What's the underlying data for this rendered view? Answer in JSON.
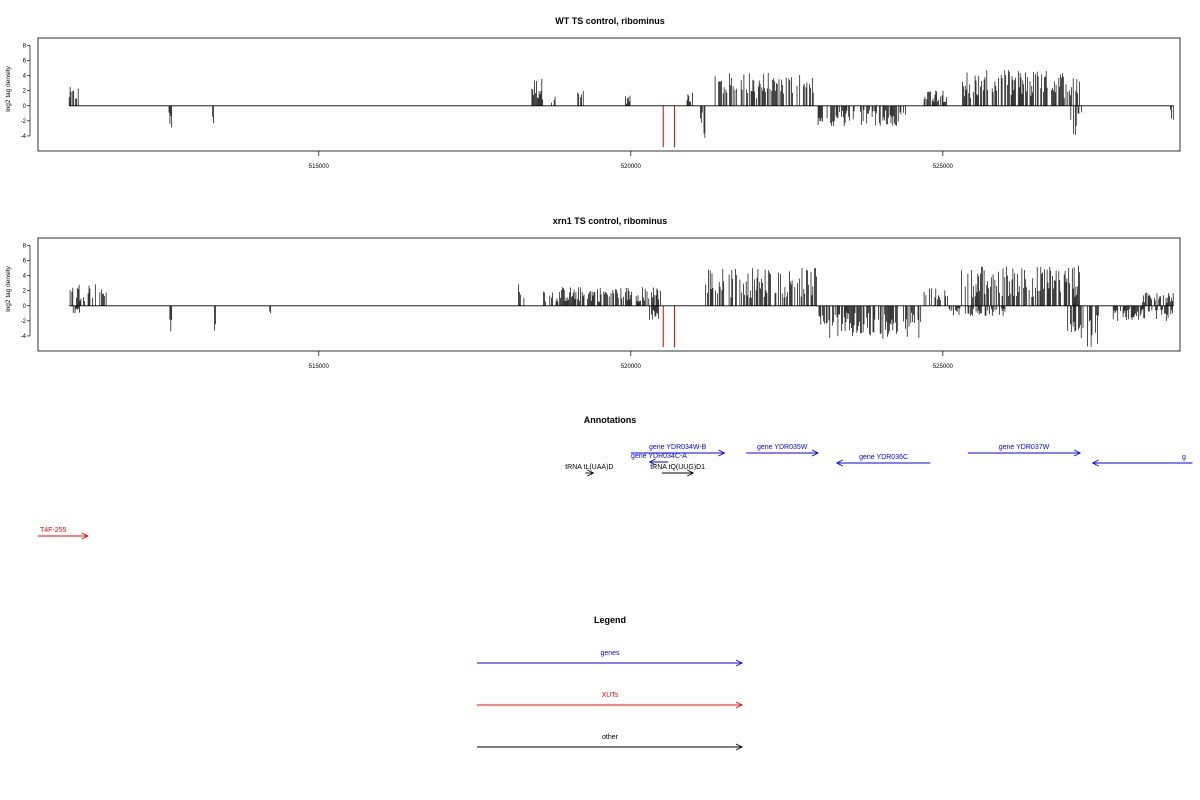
{
  "chart_data": [
    {
      "type": "bar",
      "title": "WT TS control, ribominus",
      "ylabel": "log2 tag density",
      "xlim": [
        510500,
        528800
      ],
      "ylim": [
        -6,
        9
      ],
      "yticks": [
        8,
        6,
        4,
        2,
        0,
        -2,
        -4
      ],
      "xticks": [
        515000,
        520000,
        525000
      ],
      "xtick_labels": [
        "515000",
        "520000",
        "525000"
      ],
      "red_markers_x": [
        520520,
        520700
      ],
      "red_marker_depth": -5.5,
      "segments": [
        {
          "x0": 511000,
          "x1": 511150,
          "mean": 1.5,
          "dir": 1
        },
        {
          "x0": 512600,
          "x1": 512650,
          "mean": 1.8,
          "dir": -1
        },
        {
          "x0": 513300,
          "x1": 513350,
          "mean": 1.6,
          "dir": -1
        },
        {
          "x0": 518400,
          "x1": 518600,
          "mean": 2.2,
          "dir": 1
        },
        {
          "x0": 518700,
          "x1": 518800,
          "mean": 1.2,
          "dir": 1
        },
        {
          "x0": 519150,
          "x1": 519250,
          "mean": 1.2,
          "dir": 1
        },
        {
          "x0": 519900,
          "x1": 520000,
          "mean": 0.8,
          "dir": 1
        },
        {
          "x0": 520900,
          "x1": 521000,
          "mean": 1.2,
          "dir": 1
        },
        {
          "x0": 521100,
          "x1": 521200,
          "mean": 2.5,
          "dir": -1
        },
        {
          "x0": 521350,
          "x1": 522950,
          "mean": 2.6,
          "dir": 1
        },
        {
          "x0": 523000,
          "x1": 524400,
          "mean": 1.6,
          "dir": -1
        },
        {
          "x0": 524700,
          "x1": 525100,
          "mean": 1.4,
          "dir": 1
        },
        {
          "x0": 525300,
          "x1": 527200,
          "mean": 2.8,
          "dir": 1
        },
        {
          "x0": 527050,
          "x1": 527250,
          "mean": 2.4,
          "dir": -1
        },
        {
          "x0": 528650,
          "x1": 528700,
          "mean": 1.2,
          "dir": -1
        }
      ]
    },
    {
      "type": "bar",
      "title": "xrn1 TS control, ribominus",
      "ylabel": "log2 tag density",
      "xlim": [
        510500,
        528800
      ],
      "ylim": [
        -6,
        9
      ],
      "yticks": [
        8,
        6,
        4,
        2,
        0,
        -2,
        -4
      ],
      "xticks": [
        515000,
        520000,
        525000
      ],
      "xtick_labels": [
        "515000",
        "520000",
        "525000"
      ],
      "red_markers_x": [
        520520,
        520700
      ],
      "red_marker_depth": -5.5,
      "segments": [
        {
          "x0": 511000,
          "x1": 511600,
          "mean": 1.8,
          "dir": 1
        },
        {
          "x0": 511050,
          "x1": 511200,
          "mean": 0.6,
          "dir": -1
        },
        {
          "x0": 512600,
          "x1": 512650,
          "mean": 2.4,
          "dir": -1
        },
        {
          "x0": 513300,
          "x1": 513350,
          "mean": 2.0,
          "dir": -1
        },
        {
          "x0": 514200,
          "x1": 514250,
          "mean": 0.8,
          "dir": -1
        },
        {
          "x0": 518200,
          "x1": 518300,
          "mean": 2.0,
          "dir": 1
        },
        {
          "x0": 518600,
          "x1": 520500,
          "mean": 1.5,
          "dir": 1
        },
        {
          "x0": 520300,
          "x1": 520450,
          "mean": 1.2,
          "dir": -1
        },
        {
          "x0": 521200,
          "x1": 523000,
          "mean": 3.0,
          "dir": 1
        },
        {
          "x0": 523000,
          "x1": 524650,
          "mean": 2.6,
          "dir": -1
        },
        {
          "x0": 524700,
          "x1": 525100,
          "mean": 1.5,
          "dir": 1
        },
        {
          "x0": 525100,
          "x1": 526000,
          "mean": 0.8,
          "dir": -1
        },
        {
          "x0": 525300,
          "x1": 527200,
          "mean": 3.2,
          "dir": 1
        },
        {
          "x0": 527000,
          "x1": 527500,
          "mean": 3.2,
          "dir": -1
        },
        {
          "x0": 527700,
          "x1": 528700,
          "mean": 1.2,
          "dir": -1
        },
        {
          "x0": 528200,
          "x1": 528700,
          "mean": 1.2,
          "dir": 1
        }
      ]
    }
  ],
  "annotations": {
    "title": "Annotations",
    "items": [
      {
        "label": "gene YDR034W-B",
        "strand": "+",
        "color": "#0000ff",
        "x1": 520000,
        "x2": 521500,
        "row": 0
      },
      {
        "label": "gene YDR035W",
        "strand": "+",
        "color": "#0000ff",
        "x1": 521850,
        "x2": 523000,
        "row": 0
      },
      {
        "label": "gene YDR036C",
        "strand": "-",
        "color": "#0000ff",
        "x1": 523300,
        "x2": 524800,
        "row": 1
      },
      {
        "label": "gene YDR037W",
        "strand": "+",
        "color": "#0000ff",
        "x1": 525400,
        "x2": 527200,
        "row": 0
      },
      {
        "label": "g",
        "strand": "-",
        "color": "#0000ff",
        "x1": 527400,
        "x2": 529000,
        "row": 1
      },
      {
        "label": "gene YDR034C-A",
        "strand": "-",
        "color": "#0000ff",
        "x1": 520300,
        "x2": 520600,
        "row": 2
      },
      {
        "label": "tRNA tL(UAA)D",
        "strand": "+",
        "color": "#000000",
        "x1": 519270,
        "x2": 519400,
        "row": 3
      },
      {
        "label": "tRNA tQ(UUG)D1",
        "strand": "+",
        "color": "#000000",
        "x1": 520500,
        "x2": 521000,
        "row": 3
      },
      {
        "label": "T4F-255",
        "strand": "+",
        "color": "#ff0000",
        "x1": 510500,
        "x2": 511300,
        "row": 4
      }
    ]
  },
  "legend": {
    "title": "Legend",
    "items": [
      {
        "label": "genes",
        "color": "#0000ff"
      },
      {
        "label": "XUTs",
        "color": "#ff0000"
      },
      {
        "label": "other",
        "color": "#000000"
      }
    ]
  }
}
